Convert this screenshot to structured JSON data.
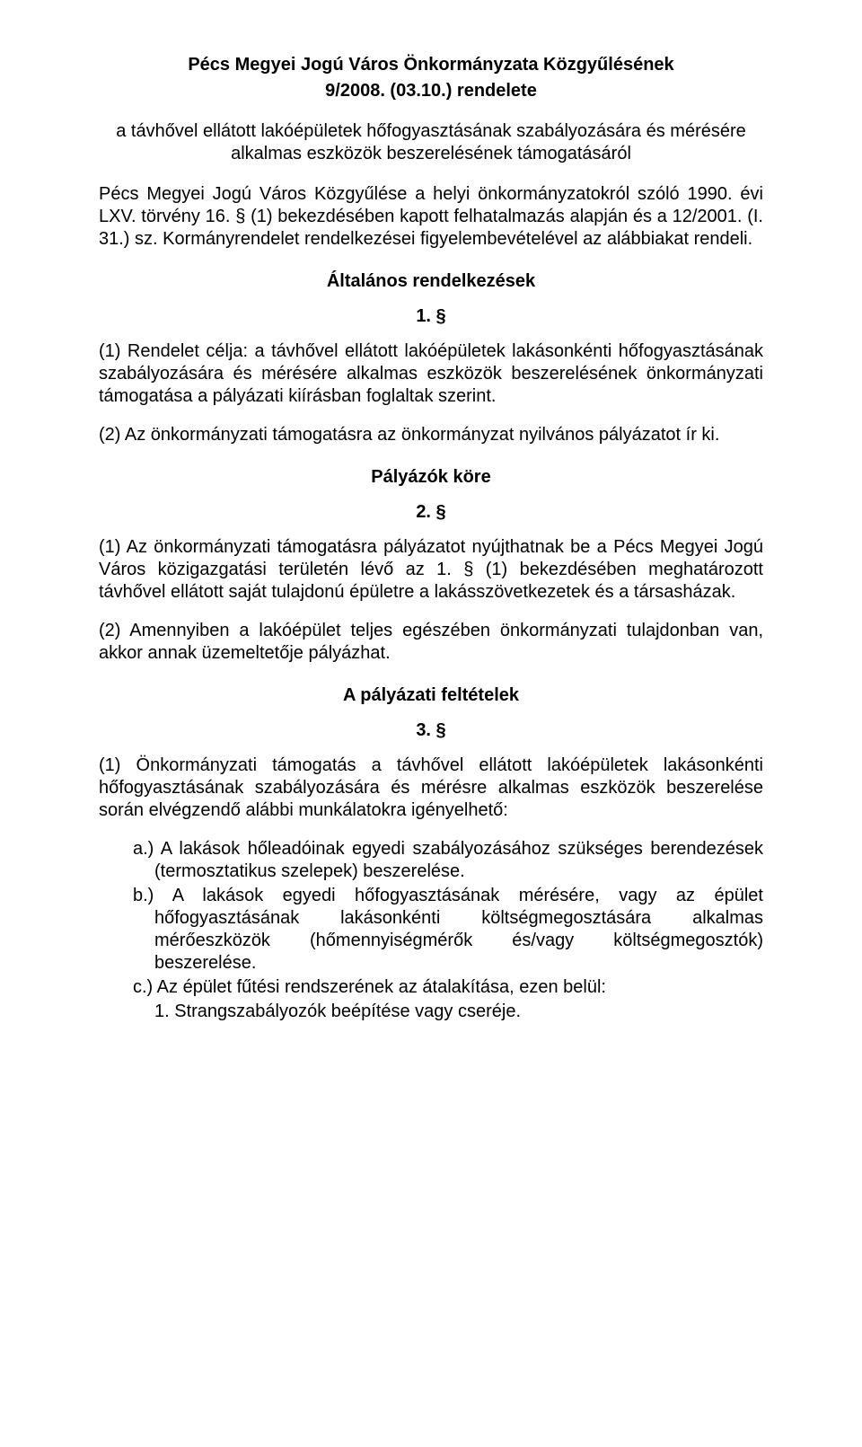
{
  "title_line1": "Pécs Megyei Jogú Város Önkormányzata Közgyűlésének",
  "title_line2": "9/2008. (03.10.) rendelete",
  "lead": "a távhővel ellátott lakóépületek hőfogyasztásának szabályozására és mérésére alkalmas eszközök beszerelésének támogatásáról",
  "preamble": "Pécs Megyei Jogú Város Közgyűlése a helyi önkormányzatokról szóló 1990. évi LXV. törvény 16. § (1) bekezdésében kapott felhatalmazás alapján és a 12/2001. (I. 31.) sz. Kormányrendelet rendelkezései figyelembevételével az alábbiakat rendeli.",
  "sections": {
    "s1": {
      "heading": "Általános rendelkezések",
      "num": "1. §",
      "p1": "(1) Rendelet célja: a távhővel ellátott lakóépületek lakásonkénti hőfogyasztásának szabályozására és mérésére alkalmas eszközök beszerelésének önkormányzati támogatása a pályázati kiírásban foglaltak szerint.",
      "p2": "(2) Az önkormányzati támogatásra az önkormányzat nyilvános pályázatot ír ki."
    },
    "s2": {
      "heading": "Pályázók köre",
      "num": "2. §",
      "p1": "(1) Az önkormányzati támogatásra pályázatot nyújthatnak be a Pécs Megyei Jogú Város közigazgatási területén lévő  az 1. § (1) bekezdésében meghatározott távhővel ellátott saját tulajdonú épületre a lakásszövetkezetek és a társasházak.",
      "p2": "(2) Amennyiben a lakóépület teljes egészében önkormányzati tulajdonban van, akkor annak üzemeltetője pályázhat."
    },
    "s3": {
      "heading": "A pályázati feltételek",
      "num": "3. §",
      "p1": "(1) Önkormányzati támogatás a távhővel ellátott lakóépületek lakásonkénti hőfogyasztásának szabályozására és mérésre alkalmas eszközök beszerelése során elvégzendő alábbi munkálatokra igényelhető:",
      "list": {
        "a": "a.) A lakások hőleadóinak egyedi szabályozásához szükséges berendezések (termosztatikus szelepek) beszerelése.",
        "b": "b.) A lakások egyedi hőfogyasztásának mérésére, vagy az épület hőfogyasztásának lakásonkénti költségmegosztására alkalmas mérőeszközök (hőmennyiségmérők és/vagy költségmegosztók) beszerelése.",
        "c": "c.) Az épület fűtési rendszerének az átalakítása, ezen belül:",
        "c1": "1. Strangszabályozók beépítése vagy cseréje."
      }
    }
  }
}
